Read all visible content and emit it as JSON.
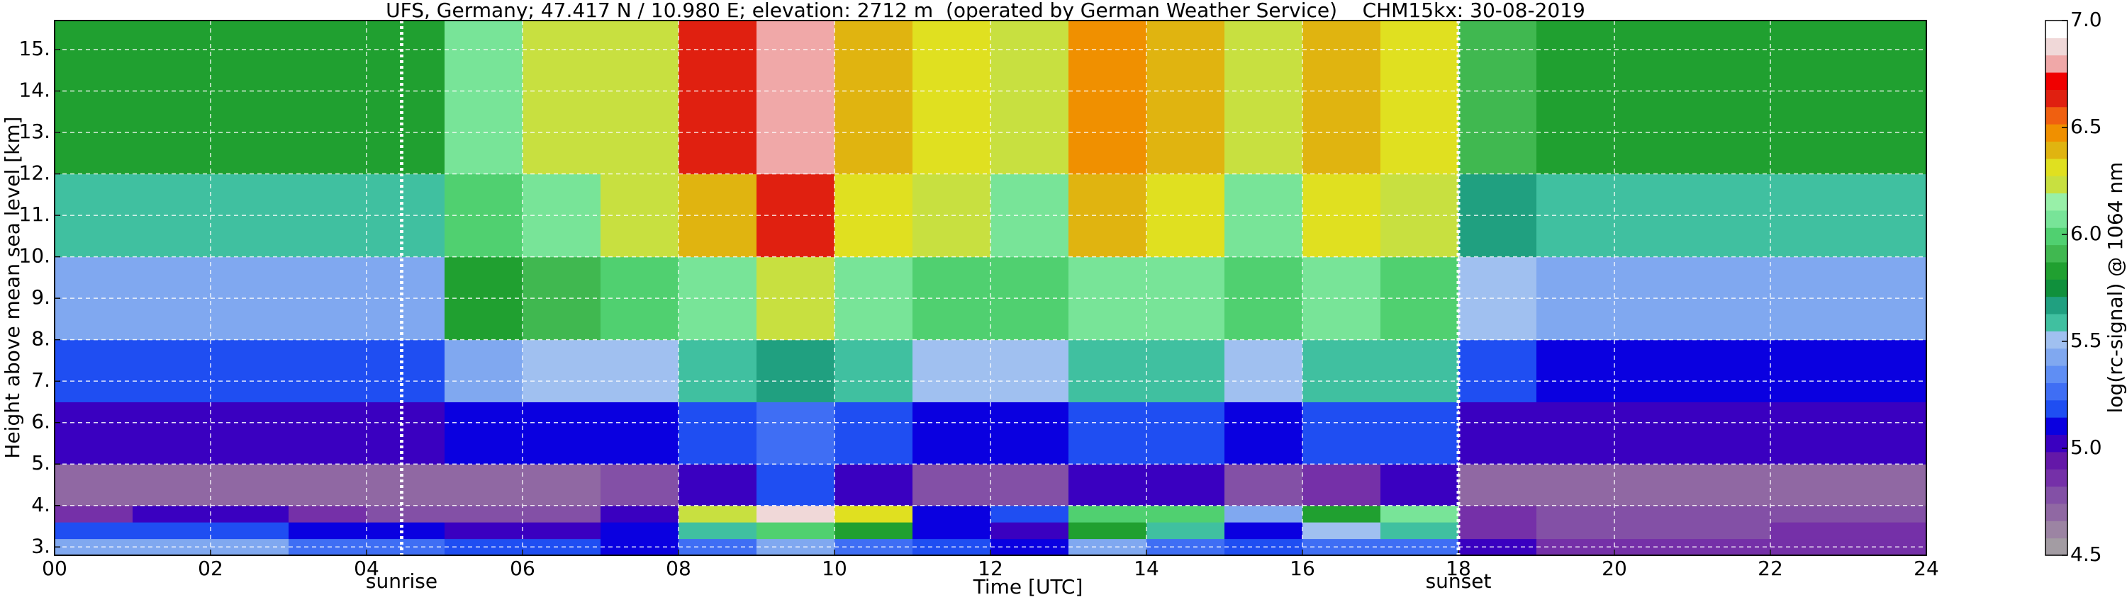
{
  "chart_data": {
    "type": "heatmap",
    "title": "UFS, Germany; 47.417 N / 10.980 E; elevation: 2712 m  (operated by German Weather Service)    CHM15kx: 30-08-2019",
    "x_label": "Time [UTC]",
    "y_label": "Height above mean sea level [km]",
    "x_edges": [
      0,
      1,
      2,
      3,
      4,
      5,
      6,
      7,
      8,
      9,
      10,
      11,
      12,
      13,
      14,
      15,
      16,
      17,
      18,
      19,
      20,
      21,
      22,
      23,
      24
    ],
    "y_edges": [
      2.8,
      3.2,
      3.6,
      4.0,
      5.0,
      6.5,
      8.0,
      10.0,
      12.0,
      15.7
    ],
    "z": [
      [
        5.4,
        5.4,
        5.4,
        5.3,
        5.3,
        5.2,
        5.2,
        5.1,
        5.3,
        5.4,
        5.3,
        5.2,
        5.1,
        5.4,
        5.3,
        5.2,
        5.3,
        5.3,
        5.0,
        4.9,
        4.9,
        4.9,
        4.9,
        4.9
      ],
      [
        5.2,
        5.2,
        5.2,
        5.1,
        5.1,
        5.0,
        5.0,
        5.1,
        5.6,
        6.0,
        5.8,
        5.1,
        5.0,
        5.8,
        5.6,
        5.1,
        5.5,
        5.6,
        4.9,
        4.8,
        4.8,
        4.8,
        4.9,
        4.9
      ],
      [
        4.9,
        5.0,
        5.0,
        4.9,
        4.8,
        4.8,
        4.8,
        5.0,
        6.2,
        6.9,
        6.3,
        5.1,
        5.2,
        6.0,
        6.0,
        5.4,
        5.8,
        6.1,
        4.9,
        4.8,
        4.8,
        4.8,
        4.8,
        4.8
      ],
      [
        4.7,
        4.7,
        4.7,
        4.7,
        4.7,
        4.7,
        4.7,
        4.8,
        5.0,
        5.2,
        5.0,
        4.8,
        4.8,
        5.0,
        5.0,
        4.8,
        4.9,
        5.0,
        4.7,
        4.7,
        4.7,
        4.7,
        4.7,
        4.7
      ],
      [
        5.0,
        5.0,
        5.0,
        5.0,
        5.0,
        5.1,
        5.1,
        5.1,
        5.2,
        5.3,
        5.2,
        5.1,
        5.1,
        5.2,
        5.2,
        5.1,
        5.2,
        5.2,
        5.0,
        5.0,
        5.0,
        5.0,
        5.0,
        5.0
      ],
      [
        5.2,
        5.2,
        5.2,
        5.2,
        5.2,
        5.4,
        5.5,
        5.5,
        5.6,
        5.7,
        5.6,
        5.5,
        5.5,
        5.6,
        5.6,
        5.5,
        5.6,
        5.6,
        5.2,
        5.1,
        5.1,
        5.1,
        5.1,
        5.1
      ],
      [
        5.4,
        5.4,
        5.4,
        5.4,
        5.4,
        5.8,
        5.9,
        6.0,
        6.1,
        6.2,
        6.1,
        6.0,
        6.0,
        6.1,
        6.1,
        6.0,
        6.1,
        6.0,
        5.5,
        5.4,
        5.4,
        5.4,
        5.4,
        5.4
      ],
      [
        5.6,
        5.6,
        5.6,
        5.6,
        5.6,
        6.0,
        6.1,
        6.2,
        6.4,
        6.6,
        6.3,
        6.2,
        6.1,
        6.4,
        6.3,
        6.1,
        6.3,
        6.2,
        5.7,
        5.6,
        5.6,
        5.6,
        5.6,
        5.6
      ],
      [
        5.8,
        5.8,
        5.8,
        5.8,
        5.8,
        6.1,
        6.2,
        6.2,
        6.6,
        6.8,
        6.4,
        6.3,
        6.2,
        6.5,
        6.4,
        6.2,
        6.4,
        6.3,
        5.9,
        5.8,
        5.8,
        5.8,
        5.8,
        5.8
      ]
    ],
    "xlim": [
      0,
      24
    ],
    "ylim": [
      2.8,
      15.7
    ],
    "xticks": [
      {
        "value": 0,
        "label": "00"
      },
      {
        "value": 2,
        "label": "02"
      },
      {
        "value": 4,
        "label": "04"
      },
      {
        "value": 6,
        "label": "06"
      },
      {
        "value": 8,
        "label": "08"
      },
      {
        "value": 10,
        "label": "10"
      },
      {
        "value": 12,
        "label": "12"
      },
      {
        "value": 14,
        "label": "14"
      },
      {
        "value": 16,
        "label": "16"
      },
      {
        "value": 18,
        "label": "18"
      },
      {
        "value": 20,
        "label": "20"
      },
      {
        "value": 22,
        "label": "22"
      },
      {
        "value": 24,
        "label": "24"
      }
    ],
    "yticks": [
      {
        "value": 3,
        "label": "3."
      },
      {
        "value": 4,
        "label": "4."
      },
      {
        "value": 5,
        "label": "5."
      },
      {
        "value": 6,
        "label": "6."
      },
      {
        "value": 7,
        "label": "7."
      },
      {
        "value": 8,
        "label": "8."
      },
      {
        "value": 9,
        "label": "9."
      },
      {
        "value": 10,
        "label": "10."
      },
      {
        "value": 11,
        "label": "11."
      },
      {
        "value": 12,
        "label": "12."
      },
      {
        "value": 13,
        "label": "13."
      },
      {
        "value": 14,
        "label": "14."
      },
      {
        "value": 15,
        "label": "15."
      }
    ],
    "grid": true,
    "annotations": [
      {
        "text": "sunrise",
        "x": 4.45
      },
      {
        "text": "sunset",
        "x": 18.0
      }
    ],
    "colorbar": {
      "label": "log(rc-signal) @ 1064 nm",
      "lim": [
        4.5,
        7.0
      ],
      "ticks": [
        4.5,
        {
          "value": 5,
          "label": "5.0"
        },
        5.5,
        {
          "value": 6,
          "label": "6.0"
        },
        6.5,
        {
          "value": 7,
          "label": "7.0"
        }
      ],
      "colors": [
        "#a39ca3",
        "#9c84a3",
        "#9068a3",
        "#8350a6",
        "#7530a8",
        "#6418a8",
        "#3a00c0",
        "#0a00e0",
        "#1f4ef2",
        "#3f6ef4",
        "#5f8ef4",
        "#80a8f0",
        "#a0c0f0",
        "#40c0a0",
        "#20a080",
        "#10903c",
        "#20a030",
        "#40b850",
        "#50d070",
        "#78e498",
        "#98f0a8",
        "#c8e040",
        "#e0e020",
        "#e0b410",
        "#f09000",
        "#f06010",
        "#e02010",
        "#f00000",
        "#f0a8a8",
        "#f0d8d8",
        "#ffffff"
      ]
    }
  }
}
